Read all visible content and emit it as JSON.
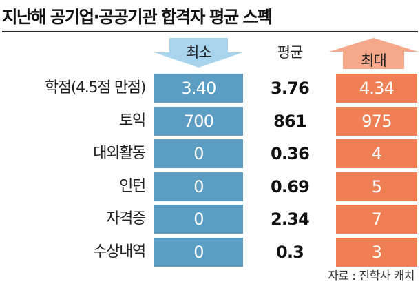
{
  "title": "지난해 공기업·공공기관 합격자 평균 스펙",
  "headers": {
    "min": "최소",
    "avg": "평균",
    "max": "최대"
  },
  "colors": {
    "min": "#5b9dc3",
    "max": "#ef8055",
    "min_arrow": "#a9d4ee",
    "max_arrow": "#f5a98a"
  },
  "chart_data": {
    "type": "table",
    "title": "지난해 공기업·공공기관 합격자 평균 스펙",
    "columns": [
      "최소",
      "평균",
      "최대"
    ],
    "rows": [
      {
        "label": "학점(4.5점 만점)",
        "min": "3.40",
        "avg": "3.76",
        "max": "4.34"
      },
      {
        "label": "토익",
        "min": "700",
        "avg": "861",
        "max": "975"
      },
      {
        "label": "대외활동",
        "min": "0",
        "avg": "0.36",
        "max": "4"
      },
      {
        "label": "인턴",
        "min": "0",
        "avg": "0.69",
        "max": "5"
      },
      {
        "label": "자격증",
        "min": "0",
        "avg": "2.34",
        "max": "7"
      },
      {
        "label": "수상내역",
        "min": "0",
        "avg": "0.3",
        "max": "3"
      }
    ],
    "source": "자료 : 진학사 캐치"
  }
}
